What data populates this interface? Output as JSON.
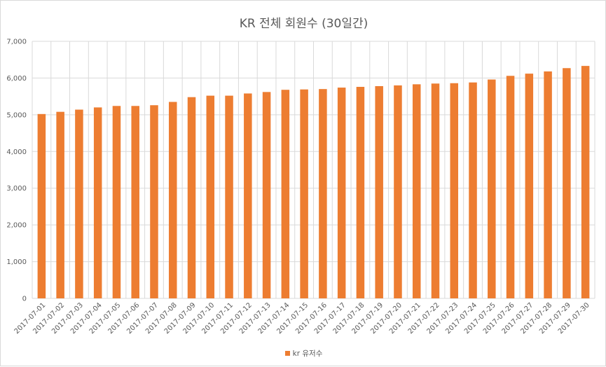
{
  "chart_data": {
    "type": "bar",
    "title": "KR 전체 회원수 (30일간)",
    "xlabel": "",
    "ylabel": "",
    "ylim": [
      0,
      7000
    ],
    "yticks": [
      "0",
      "1,000",
      "2,000",
      "3,000",
      "4,000",
      "5,000",
      "6,000",
      "7,000"
    ],
    "grid": true,
    "legend_position": "bottom",
    "categories": [
      "2017-07-01",
      "2017-07-02",
      "2017-07-03",
      "2017-07-04",
      "2017-07-05",
      "2017-07-06",
      "2017-07-07",
      "2017-07-08",
      "2017-07-09",
      "2017-07-10",
      "2017-07-11",
      "2017-07-12",
      "2017-07-13",
      "2017-07-14",
      "2017-07-15",
      "2017-07-16",
      "2017-07-17",
      "2017-07-18",
      "2017-07-19",
      "2017-07-20",
      "2017-07-21",
      "2017-07-22",
      "2017-07-23",
      "2017-07-24",
      "2017-07-25",
      "2017-07-26",
      "2017-07-27",
      "2017-07-28",
      "2017-07-29",
      "2017-07-30"
    ],
    "series": [
      {
        "name": "kr 유저수",
        "color": "#ed7d31",
        "values": [
          5020,
          5080,
          5140,
          5200,
          5240,
          5240,
          5260,
          5350,
          5480,
          5520,
          5520,
          5580,
          5620,
          5680,
          5690,
          5700,
          5740,
          5760,
          5780,
          5800,
          5830,
          5850,
          5860,
          5880,
          5960,
          6060,
          6120,
          6180,
          6270,
          6330
        ]
      }
    ]
  }
}
